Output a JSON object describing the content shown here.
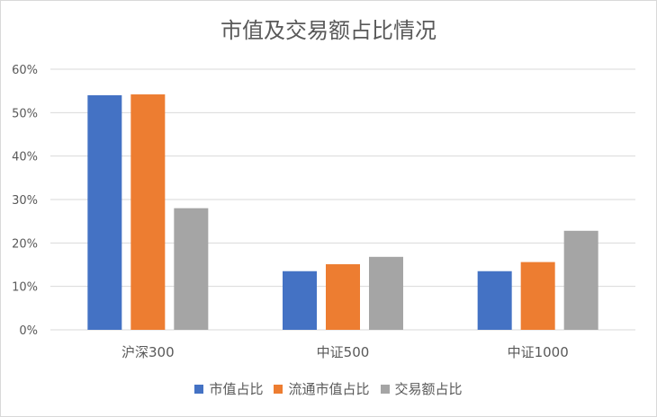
{
  "colors": {
    "market_cap": "#4472C4",
    "float_cap": "#ED7D31",
    "turnover": "#A5A5A5",
    "grid": "#d9d9d9",
    "text": "#595959"
  },
  "chart_data": {
    "type": "bar",
    "title": "市值及交易额占比情况",
    "categories": [
      "沪深300",
      "中证500",
      "中证1000"
    ],
    "series": [
      {
        "name": "市值占比",
        "values": [
          54.0,
          13.5,
          13.5
        ]
      },
      {
        "name": "流通市值占比",
        "values": [
          54.2,
          15.1,
          15.6
        ]
      },
      {
        "name": "交易额占比",
        "values": [
          28.0,
          16.8,
          22.8
        ]
      }
    ],
    "yticks": [
      "0%",
      "10%",
      "20%",
      "30%",
      "40%",
      "50%",
      "60%"
    ],
    "ylim": [
      0,
      60
    ],
    "grid": true,
    "legend": "bottom"
  }
}
